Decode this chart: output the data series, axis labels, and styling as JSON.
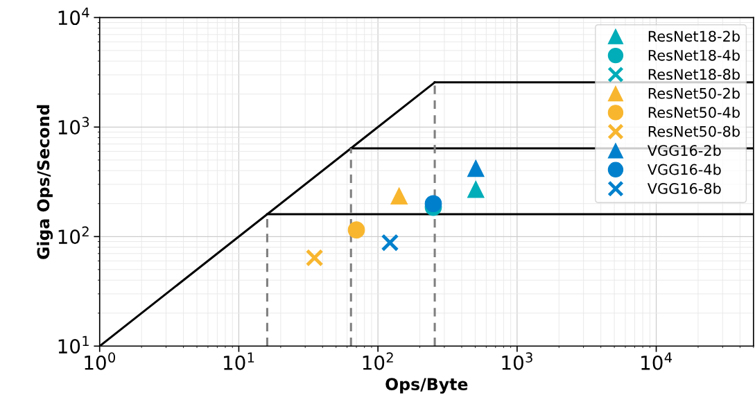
{
  "chart_data": {
    "type": "scatter",
    "xlabel": "Ops/Byte",
    "ylabel": "Giga Ops/Second",
    "log": "xy",
    "grid": true,
    "legend": "top right",
    "xlim": [
      1,
      50000
    ],
    "ylim": [
      10,
      10000
    ],
    "xticks": [
      {
        "value": 1,
        "label": "10$^{0}$"
      },
      {
        "value": 10,
        "label": "10$^{1}$"
      },
      {
        "value": 100,
        "label": "10$^{2}$"
      },
      {
        "value": 1000,
        "label": "10$^{3}$"
      },
      {
        "value": 10000,
        "label": "10$^{4}$"
      }
    ],
    "yticks": [
      {
        "value": 10,
        "label": "10$^{1}$"
      },
      {
        "value": 100,
        "label": "10$^{2}$"
      },
      {
        "value": 1000,
        "label": "10$^{3}$"
      },
      {
        "value": 10000,
        "label": "10$^{4}$"
      }
    ],
    "series": [
      {
        "type": "line",
        "color": "#000000",
        "marker": "none",
        "line_style": "solid",
        "x": [
          1,
          256
        ],
        "values": [
          10,
          2560
        ]
      },
      {
        "type": "line",
        "color": "#000000",
        "marker": "none",
        "line_style": "solid",
        "x": [
          16,
          50000
        ],
        "values": [
          160,
          160
        ]
      },
      {
        "type": "line",
        "color": "#000000",
        "marker": "none",
        "line_style": "solid",
        "x": [
          64,
          50000
        ],
        "values": [
          640,
          640
        ]
      },
      {
        "type": "line",
        "color": "#000000",
        "marker": "none",
        "line_style": "solid",
        "x": [
          256,
          50000
        ],
        "values": [
          2560,
          2560
        ]
      },
      {
        "type": "line",
        "color": "#7f7f7f",
        "marker": "none",
        "line_style": "dashed",
        "x": [
          16,
          16
        ],
        "values": [
          10,
          160
        ]
      },
      {
        "type": "line",
        "color": "#7f7f7f",
        "marker": "none",
        "line_style": "dashed",
        "x": [
          64,
          64
        ],
        "values": [
          10,
          640
        ]
      },
      {
        "type": "line",
        "color": "#7f7f7f",
        "marker": "none",
        "line_style": "dashed",
        "x": [
          256,
          256
        ],
        "values": [
          10,
          2560
        ]
      },
      {
        "name": "ResNet18-2b",
        "color": "#00adb8",
        "marker": "triangle",
        "x": [
          505
        ],
        "values": [
          270
        ]
      },
      {
        "name": "ResNet18-4b",
        "color": "#00adb8",
        "marker": "circle",
        "x": [
          250
        ],
        "values": [
          185
        ]
      },
      {
        "name": "ResNet18-8b",
        "color": "#00adb8",
        "marker": "cross"
      },
      {
        "name": "ResNet50-2b",
        "color": "#f8b62f",
        "marker": "triangle",
        "x": [
          142
        ],
        "values": [
          235
        ]
      },
      {
        "name": "ResNet50-4b",
        "color": "#f8b62f",
        "marker": "circle",
        "x": [
          70
        ],
        "values": [
          115
        ]
      },
      {
        "name": "ResNet50-8b",
        "color": "#f8b62f",
        "marker": "cross",
        "x": [
          35
        ],
        "values": [
          64
        ]
      },
      {
        "name": "VGG16-2b",
        "color": "#0080cc",
        "marker": "triangle",
        "x": [
          505
        ],
        "values": [
          420
        ]
      },
      {
        "name": "VGG16-4b",
        "color": "#0080cc",
        "marker": "circle",
        "x": [
          250
        ],
        "values": [
          200
        ]
      },
      {
        "name": "VGG16-8b",
        "color": "#0080cc",
        "marker": "cross",
        "x": [
          122
        ],
        "values": [
          88
        ]
      }
    ]
  }
}
